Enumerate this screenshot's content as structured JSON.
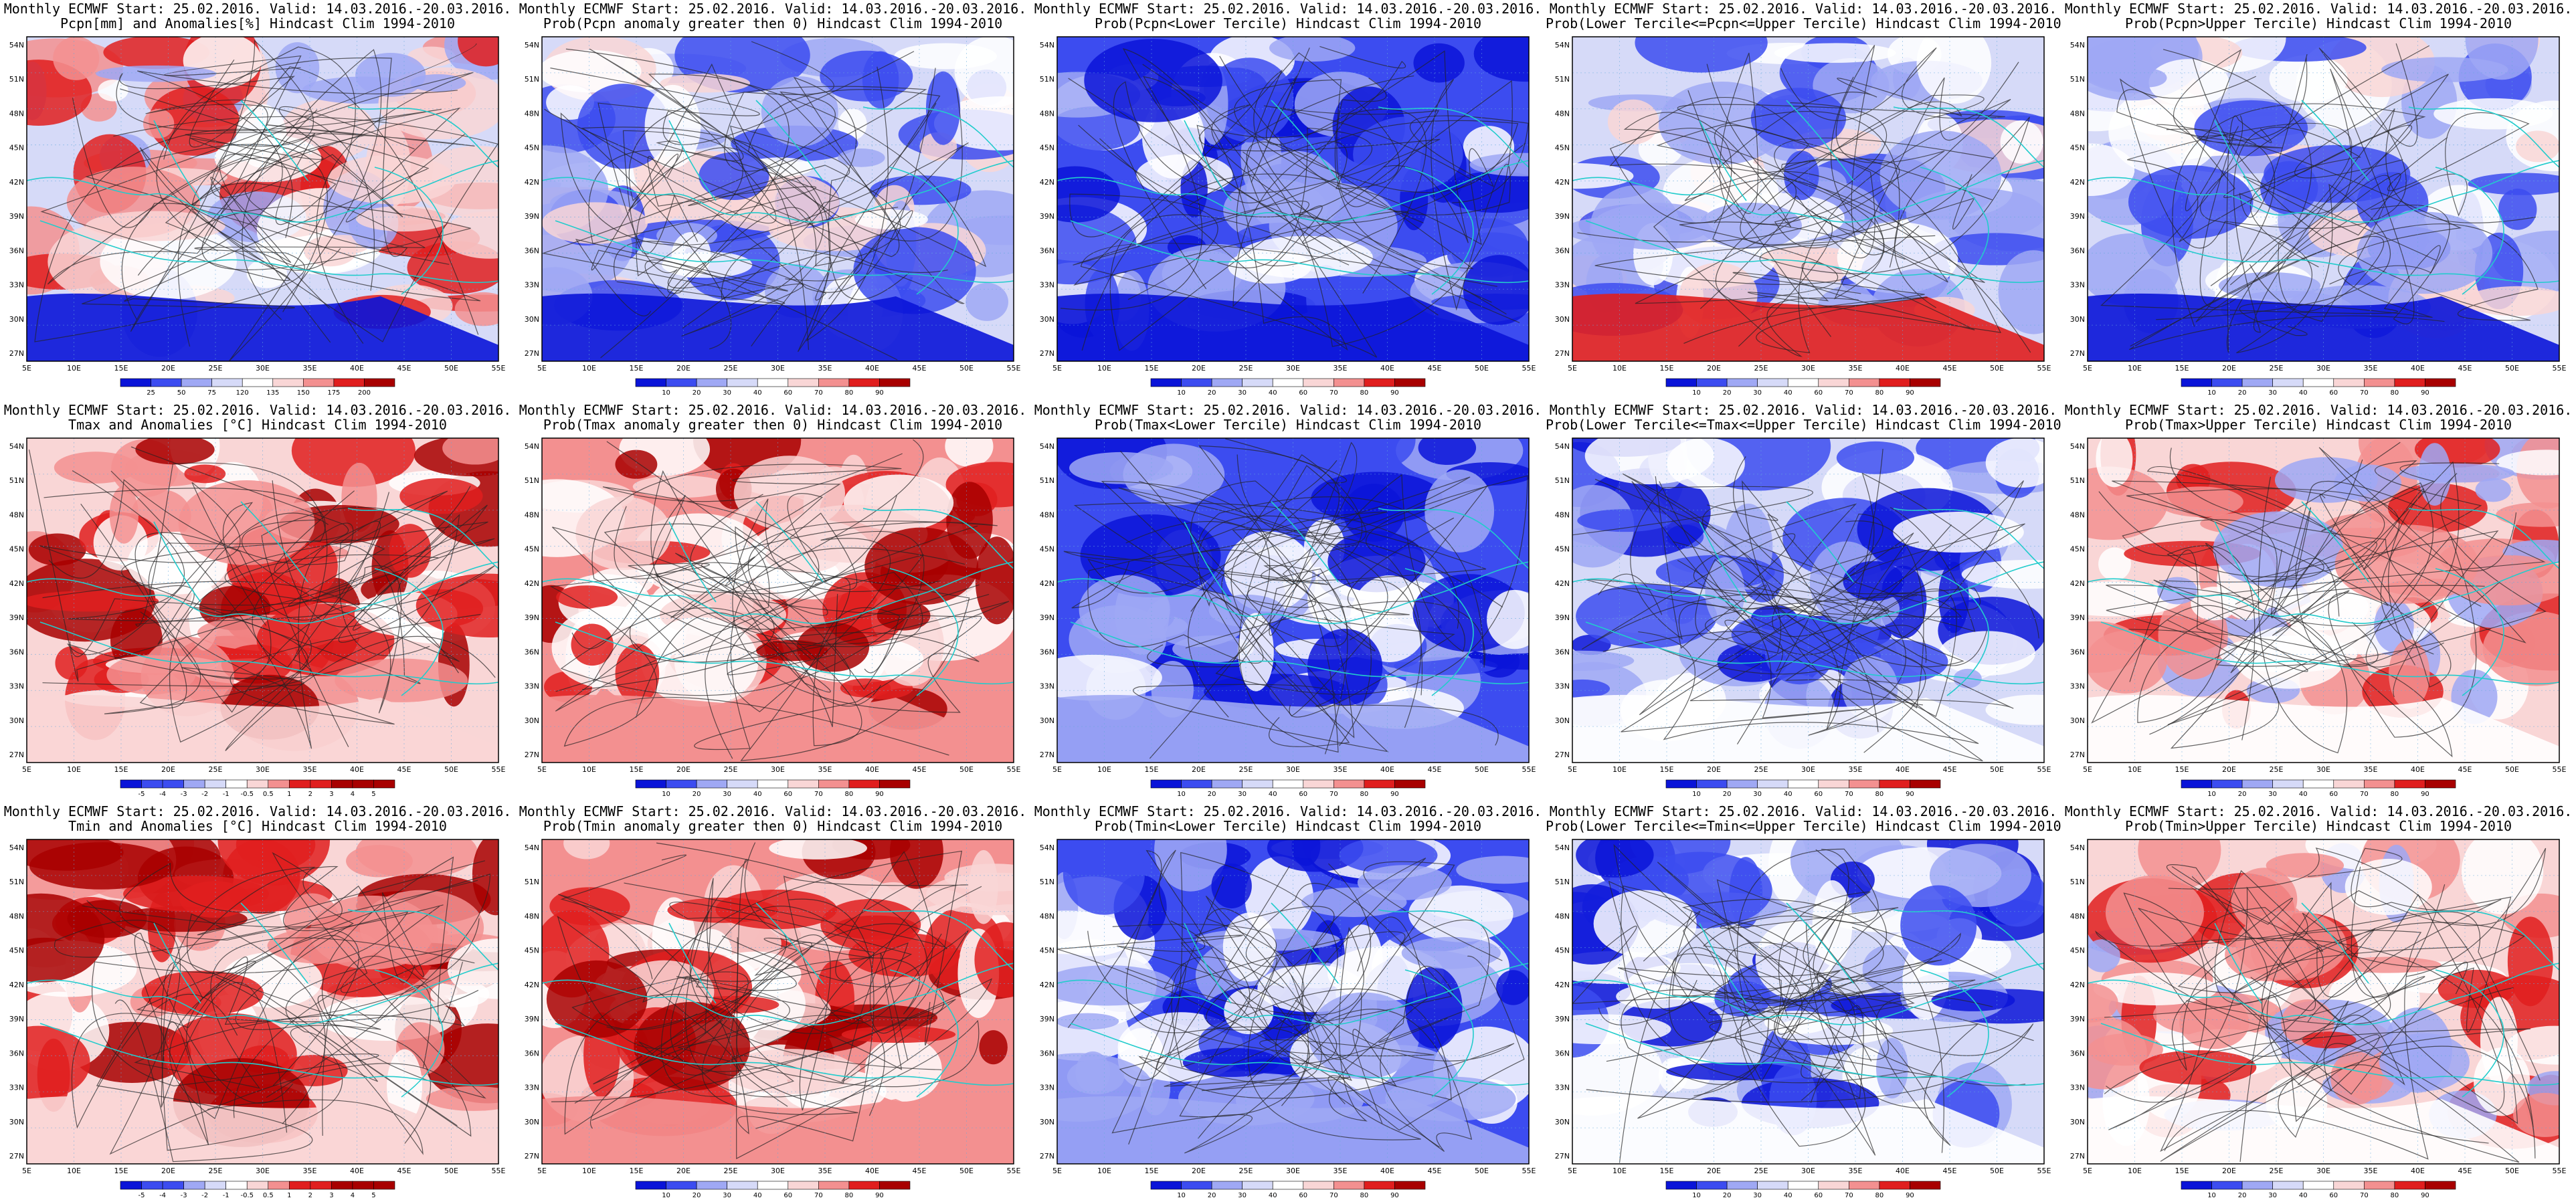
{
  "header": "Monthly ECMWF Start: 25.02.2016. Valid: 14.03.2016.-20.03.2016.",
  "lat_labels": [
    "54N",
    "51N",
    "48N",
    "45N",
    "42N",
    "39N",
    "36N",
    "33N",
    "30N",
    "27N"
  ],
  "lon_labels": [
    "5E",
    "10E",
    "15E",
    "20E",
    "25E",
    "30E",
    "35E",
    "40E",
    "45E",
    "50E",
    "55E"
  ],
  "anom_precip_ticks": [
    "25",
    "50",
    "75",
    "120",
    "135",
    "150",
    "175",
    "200"
  ],
  "anom_temp_ticks": [
    "-5",
    "-4",
    "-3",
    "-2",
    "-1",
    "-0.5",
    "0.5",
    "1",
    "2",
    "3",
    "4",
    "5"
  ],
  "prob_ticks": [
    "10",
    "20",
    "30",
    "40",
    "60",
    "70",
    "80",
    "90"
  ],
  "colors": {
    "blue_dark": "#0a14d8",
    "blue_mid": "#3c4cf0",
    "blue_light": "#9fa8f4",
    "blue_pale": "#d6daf8",
    "red_dark": "#a80000",
    "red_mid": "#e01e1e",
    "red_light": "#f39090",
    "red_pale": "#f9d6d6",
    "coast": "#22cccc",
    "contour": "#222222",
    "white": "#ffffff"
  },
  "panels": [
    {
      "id": "pcpn-anom",
      "title": "Pcpn[mm] and Anomalies[%] Hindcast Clim 1994-2010",
      "scheme": "precip",
      "cbar": "precip"
    },
    {
      "id": "pcpn-prob-gt0",
      "title": "Prob(Pcpn anomaly greater then 0) Hindcast Clim 1994-2010",
      "scheme": "probmix",
      "cbar": "prob"
    },
    {
      "id": "pcpn-prob-lower",
      "title": "Prob(Pcpn<Lower Tercile) Hindcast Clim 1994-2010",
      "scheme": "blue",
      "cbar": "prob"
    },
    {
      "id": "pcpn-prob-middle",
      "title": "Prob(Lower Tercile<=Pcpn<=Upper Tercile) Hindcast Clim 1994-2010",
      "scheme": "middle_redsouth",
      "cbar": "prob"
    },
    {
      "id": "pcpn-prob-upper",
      "title": "Prob(Pcpn>Upper Tercile) Hindcast Clim 1994-2010",
      "scheme": "upperpcpn",
      "cbar": "prob"
    },
    {
      "id": "tmax-anom",
      "title": "Tmax and Anomalies [°C] Hindcast Clim 1994-2010",
      "scheme": "red",
      "cbar": "temp"
    },
    {
      "id": "tmax-prob-gt0",
      "title": "Prob(Tmax anomaly greater then 0) Hindcast Clim 1994-2010",
      "scheme": "redstrong",
      "cbar": "prob"
    },
    {
      "id": "tmax-prob-lower",
      "title": "Prob(Tmax<Lower Tercile) Hindcast Clim 1994-2010",
      "scheme": "bluestrong",
      "cbar": "prob"
    },
    {
      "id": "tmax-prob-middle",
      "title": "Prob(Lower Tercile<=Tmax<=Upper Tercile) Hindcast Clim 1994-2010",
      "scheme": "middle",
      "cbar": "prob"
    },
    {
      "id": "tmax-prob-upper",
      "title": "Prob(Tmax>Upper Tercile) Hindcast Clim 1994-2010",
      "scheme": "redupper",
      "cbar": "prob"
    },
    {
      "id": "tmin-anom",
      "title": "Tmin and Anomalies [°C] Hindcast Clim 1994-2010",
      "scheme": "red",
      "cbar": "temp"
    },
    {
      "id": "tmin-prob-gt0",
      "title": "Prob(Tmin anomaly greater then 0) Hindcast Clim 1994-2010",
      "scheme": "redstrong",
      "cbar": "prob"
    },
    {
      "id": "tmin-prob-lower",
      "title": "Prob(Tmin<Lower Tercile) Hindcast Clim 1994-2010",
      "scheme": "bluestrong",
      "cbar": "prob"
    },
    {
      "id": "tmin-prob-middle",
      "title": "Prob(Lower Tercile<=Tmin<=Upper Tercile) Hindcast Clim 1994-2010",
      "scheme": "middle",
      "cbar": "prob"
    },
    {
      "id": "tmin-prob-upper",
      "title": "Prob(Tmin>Upper Tercile) Hindcast Clim 1994-2010",
      "scheme": "redupper",
      "cbar": "prob"
    }
  ]
}
